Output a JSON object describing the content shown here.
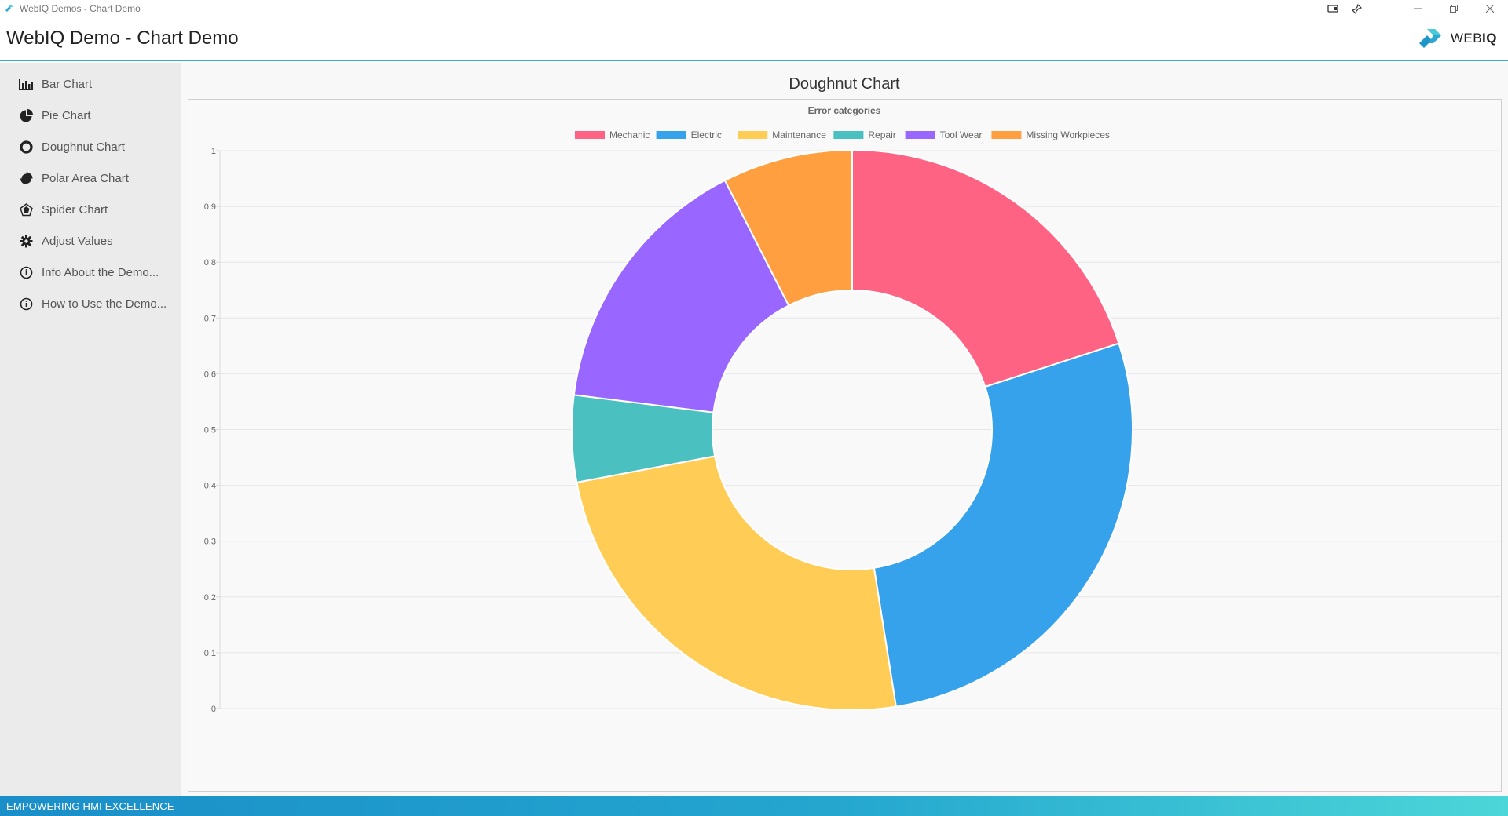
{
  "window": {
    "title": "WebIQ Demos - Chart Demo"
  },
  "header": {
    "title": "WebIQ Demo - Chart Demo",
    "logo_text_regular": "WEB",
    "logo_text_bold": "IQ"
  },
  "sidebar": {
    "items": [
      {
        "label": "Bar Chart",
        "icon": "bar-chart-icon"
      },
      {
        "label": "Pie Chart",
        "icon": "pie-chart-icon"
      },
      {
        "label": "Doughnut Chart",
        "icon": "doughnut-chart-icon"
      },
      {
        "label": "Polar Area Chart",
        "icon": "polar-area-chart-icon"
      },
      {
        "label": "Spider Chart",
        "icon": "spider-chart-icon"
      },
      {
        "label": "Adjust Values",
        "icon": "gear-icon"
      },
      {
        "label": "Info About the Demo...",
        "icon": "info-icon"
      },
      {
        "label": "How to Use the Demo...",
        "icon": "info-icon"
      }
    ]
  },
  "main": {
    "page_title": "Doughnut Chart"
  },
  "chart_data": {
    "type": "doughnut",
    "title": "Error categories",
    "legend_position": "top",
    "categories": [
      "Mechanic",
      "Electric",
      "Maintenance",
      "Repair",
      "Tool Wear",
      "Missing Workpieces"
    ],
    "values": [
      20,
      27.5,
      24.5,
      5,
      15.5,
      7.5
    ],
    "colors": [
      "#ff6384",
      "#36a2eb",
      "#ffcd56",
      "#4bc0c0",
      "#9966ff",
      "#ff9f40"
    ],
    "y_ticks": [
      "1",
      "0.9",
      "0.8",
      "0.7",
      "0.6",
      "0.5",
      "0.4",
      "0.3",
      "0.2",
      "0.1",
      "0"
    ],
    "grid": true
  },
  "footer": {
    "text": "EMPOWERING HMI EXCELLENCE"
  }
}
